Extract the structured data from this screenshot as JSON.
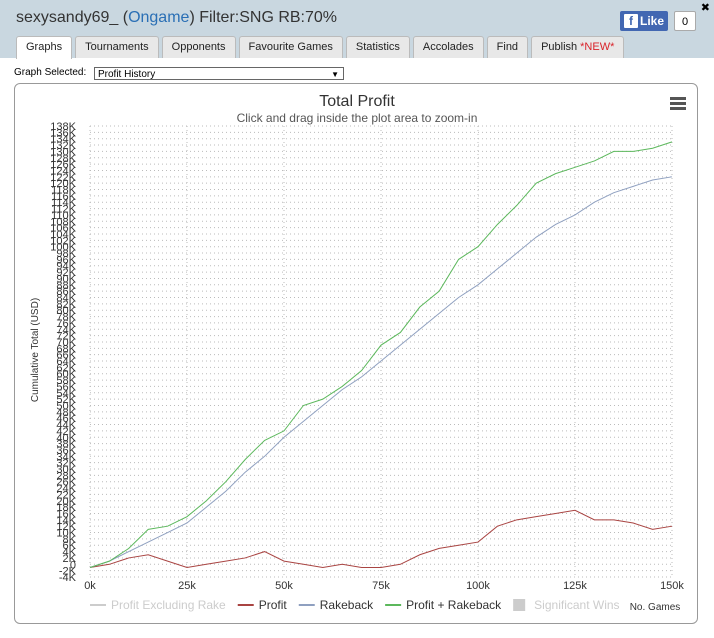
{
  "header": {
    "user": "sexysandy69_ (",
    "network": "Ongame",
    "filter": ") Filter:SNG RB:70%",
    "like": "Like",
    "like_count": "0",
    "close": "✖"
  },
  "tabs": [
    "Graphs",
    "Tournaments",
    "Opponents",
    "Favourite Games",
    "Statistics",
    "Accolades",
    "Find",
    "Publish"
  ],
  "tab_badge": "*NEW*",
  "selector": {
    "label": "Graph Selected:",
    "value": "Profit History",
    "arrow": "▼"
  },
  "chart_data": {
    "type": "line",
    "title": "Total Profit",
    "subtitle": "Click and drag inside the plot area to zoom-in",
    "y_label": "Cumulative Total (USD)",
    "x_label": "No. Games",
    "grid": true,
    "legend": "bottom",
    "x": [
      0,
      5000,
      10000,
      15000,
      20000,
      25000,
      30000,
      35000,
      40000,
      45000,
      50000,
      55000,
      60000,
      65000,
      70000,
      75000,
      80000,
      85000,
      90000,
      95000,
      100000,
      105000,
      110000,
      115000,
      120000,
      125000,
      130000,
      135000,
      140000,
      145000,
      150000
    ],
    "series": [
      {
        "name": "Profit Excluding Rake",
        "color": "#cccccc",
        "hidden": true
      },
      {
        "name": "Profit",
        "color": "#a94442",
        "values": [
          -1000,
          0,
          2000,
          3000,
          1000,
          -1000,
          0,
          1000,
          2000,
          4000,
          1000,
          0,
          -1000,
          0,
          -1000,
          -1000,
          0,
          3000,
          5000,
          6000,
          7000,
          12000,
          14000,
          15000,
          16000,
          17000,
          14000,
          14000,
          13000,
          11000,
          12000
        ]
      },
      {
        "name": "Rakeback",
        "color": "#8fa0c0",
        "values": [
          -1000,
          1000,
          4000,
          7000,
          10000,
          13000,
          18000,
          23000,
          29000,
          34000,
          40000,
          45000,
          50000,
          55000,
          59000,
          64000,
          69000,
          74000,
          79000,
          84000,
          88000,
          93000,
          98000,
          103000,
          107000,
          110000,
          114000,
          117000,
          119000,
          121000,
          122000
        ]
      },
      {
        "name": "Profit + Rakeback",
        "color": "#5cb85c",
        "values": [
          -1000,
          1000,
          5000,
          11000,
          12000,
          15000,
          20000,
          26000,
          33000,
          39000,
          42000,
          50000,
          52000,
          56000,
          61000,
          69000,
          73000,
          81000,
          86000,
          96000,
          100000,
          107000,
          113000,
          120000,
          123000,
          125000,
          127000,
          130000,
          130000,
          131000,
          133000
        ]
      },
      {
        "name": "Significant Wins",
        "color": "#cccccc",
        "hidden": true,
        "symbol": "square"
      }
    ],
    "xlim": [
      0,
      150000
    ],
    "xticks": [
      {
        "value": 0,
        "label": "0k"
      },
      {
        "value": 25000,
        "label": "25k"
      },
      {
        "value": 50000,
        "label": "50k"
      },
      {
        "value": 75000,
        "label": "75k"
      },
      {
        "value": 100000,
        "label": "100k"
      },
      {
        "value": 125000,
        "label": "125k"
      },
      {
        "value": 150000,
        "label": "150k"
      }
    ],
    "ylim": [
      -4000,
      138000
    ],
    "yticks": [
      {
        "value": -4000,
        "label": "-4K"
      },
      {
        "value": -2000,
        "label": "-2K"
      },
      {
        "value": 0,
        "label": "0"
      },
      {
        "value": 2000,
        "label": "2K"
      },
      {
        "value": 4000,
        "label": "4K"
      },
      {
        "value": 6000,
        "label": "6K"
      },
      {
        "value": 8000,
        "label": "8K"
      },
      {
        "value": 10000,
        "label": "10K"
      },
      {
        "value": 12000,
        "label": "12K"
      },
      {
        "value": 14000,
        "label": "14K"
      },
      {
        "value": 16000,
        "label": "16K"
      },
      {
        "value": 18000,
        "label": "18K"
      },
      {
        "value": 20000,
        "label": "20K"
      },
      {
        "value": 22000,
        "label": "22K"
      },
      {
        "value": 24000,
        "label": "24K"
      },
      {
        "value": 26000,
        "label": "26K"
      },
      {
        "value": 28000,
        "label": "28K"
      },
      {
        "value": 30000,
        "label": "30K"
      },
      {
        "value": 32000,
        "label": "32K"
      },
      {
        "value": 34000,
        "label": "34K"
      },
      {
        "value": 36000,
        "label": "36K"
      },
      {
        "value": 38000,
        "label": "38K"
      },
      {
        "value": 40000,
        "label": "40K"
      },
      {
        "value": 42000,
        "label": "42K"
      },
      {
        "value": 44000,
        "label": "44K"
      },
      {
        "value": 46000,
        "label": "46K"
      },
      {
        "value": 48000,
        "label": "48K"
      },
      {
        "value": 50000,
        "label": "50K"
      },
      {
        "value": 52000,
        "label": "52K"
      },
      {
        "value": 54000,
        "label": "54K"
      },
      {
        "value": 56000,
        "label": "56K"
      },
      {
        "value": 58000,
        "label": "58K"
      },
      {
        "value": 60000,
        "label": "60K"
      },
      {
        "value": 62000,
        "label": "62K"
      },
      {
        "value": 64000,
        "label": "64K"
      },
      {
        "value": 66000,
        "label": "66K"
      },
      {
        "value": 68000,
        "label": "68K"
      },
      {
        "value": 70000,
        "label": "70K"
      },
      {
        "value": 72000,
        "label": "72K"
      },
      {
        "value": 74000,
        "label": "74K"
      },
      {
        "value": 76000,
        "label": "76K"
      },
      {
        "value": 78000,
        "label": "78K"
      },
      {
        "value": 80000,
        "label": "80K"
      },
      {
        "value": 82000,
        "label": "82K"
      },
      {
        "value": 84000,
        "label": "84K"
      },
      {
        "value": 86000,
        "label": "86K"
      },
      {
        "value": 88000,
        "label": "88K"
      },
      {
        "value": 90000,
        "label": "90K"
      },
      {
        "value": 92000,
        "label": "92K"
      },
      {
        "value": 94000,
        "label": "94K"
      },
      {
        "value": 96000,
        "label": "96K"
      },
      {
        "value": 98000,
        "label": "98K"
      },
      {
        "value": 100000,
        "label": "100K"
      },
      {
        "value": 102000,
        "label": "102K"
      },
      {
        "value": 104000,
        "label": "104K"
      },
      {
        "value": 106000,
        "label": "106K"
      },
      {
        "value": 108000,
        "label": "108K"
      },
      {
        "value": 110000,
        "label": "110K"
      },
      {
        "value": 112000,
        "label": "112K"
      },
      {
        "value": 114000,
        "label": "114K"
      },
      {
        "value": 116000,
        "label": "116K"
      },
      {
        "value": 118000,
        "label": "118K"
      },
      {
        "value": 120000,
        "label": "120K"
      },
      {
        "value": 122000,
        "label": "122K"
      },
      {
        "value": 124000,
        "label": "124K"
      },
      {
        "value": 126000,
        "label": "126K"
      },
      {
        "value": 128000,
        "label": "128K"
      },
      {
        "value": 130000,
        "label": "130K"
      },
      {
        "value": 132000,
        "label": "132K"
      },
      {
        "value": 134000,
        "label": "134K"
      },
      {
        "value": 136000,
        "label": "136K"
      },
      {
        "value": 138000,
        "label": "138K"
      }
    ]
  }
}
